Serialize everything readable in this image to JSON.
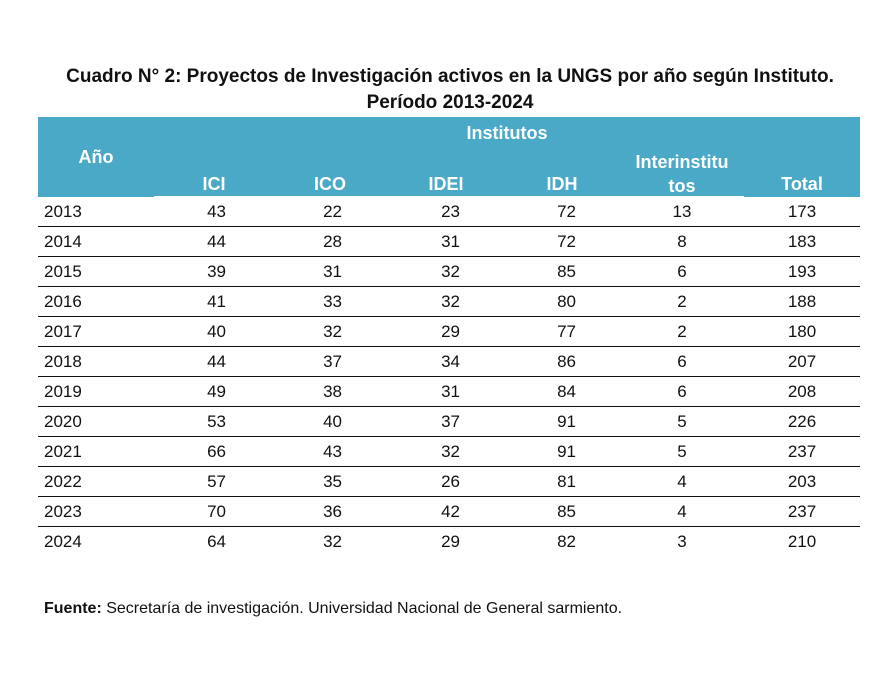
{
  "title": "Cuadro N° 2: Proyectos de Investigación activos en la UNGS por año según Instituto. Período 2013-2024",
  "table": {
    "header": {
      "year": "Año",
      "group": "Institutos",
      "columns": [
        "ICI",
        "ICO",
        "IDEI",
        "IDH",
        "Interinstitutos",
        "Total"
      ],
      "inter_line1": "Interinstitu",
      "inter_line2": "tos"
    },
    "rows": [
      {
        "year": "2013",
        "ici": "43",
        "ico": "22",
        "idei": "23",
        "idh": "72",
        "inter": "13",
        "total": "173"
      },
      {
        "year": "2014",
        "ici": "44",
        "ico": "28",
        "idei": "31",
        "idh": "72",
        "inter": "8",
        "total": "183"
      },
      {
        "year": "2015",
        "ici": "39",
        "ico": "31",
        "idei": "32",
        "idh": "85",
        "inter": "6",
        "total": "193"
      },
      {
        "year": "2016",
        "ici": "41",
        "ico": "33",
        "idei": "32",
        "idh": "80",
        "inter": "2",
        "total": "188"
      },
      {
        "year": "2017",
        "ici": "40",
        "ico": "32",
        "idei": "29",
        "idh": "77",
        "inter": "2",
        "total": "180"
      },
      {
        "year": "2018",
        "ici": "44",
        "ico": "37",
        "idei": "34",
        "idh": "86",
        "inter": "6",
        "total": "207"
      },
      {
        "year": "2019",
        "ici": "49",
        "ico": "38",
        "idei": "31",
        "idh": "84",
        "inter": "6",
        "total": "208"
      },
      {
        "year": "2020",
        "ici": "53",
        "ico": "40",
        "idei": "37",
        "idh": "91",
        "inter": "5",
        "total": "226"
      },
      {
        "year": "2021",
        "ici": "66",
        "ico": "43",
        "idei": "32",
        "idh": "91",
        "inter": "5",
        "total": "237"
      },
      {
        "year": "2022",
        "ici": "57",
        "ico": "35",
        "idei": "26",
        "idh": "81",
        "inter": "4",
        "total": "203"
      },
      {
        "year": "2023",
        "ici": "70",
        "ico": "36",
        "idei": "42",
        "idh": "85",
        "inter": "4",
        "total": "237"
      },
      {
        "year": "2024",
        "ici": "64",
        "ico": "32",
        "idei": "29",
        "idh": "82",
        "inter": "3",
        "total": "210"
      }
    ]
  },
  "source": {
    "label": "Fuente:",
    "text": " Secretaría de investigación. Universidad Nacional de General sarmiento."
  },
  "colors": {
    "header_bg": "#4aa9c7",
    "header_text": "#ffffff"
  }
}
